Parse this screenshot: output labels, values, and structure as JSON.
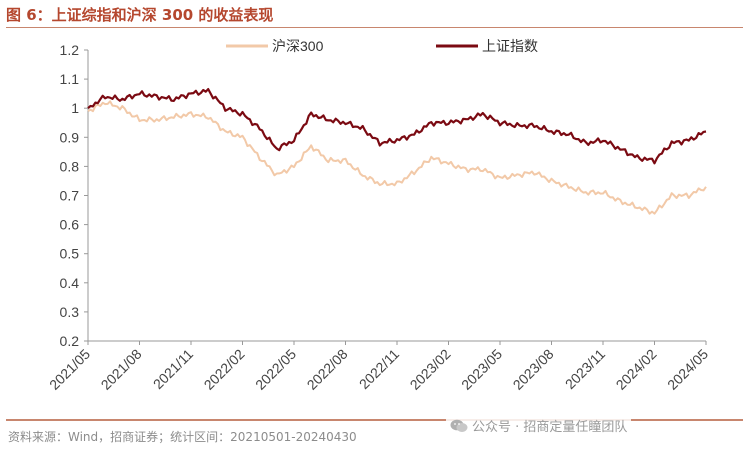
{
  "page": {
    "title": "图 6：上证综指和沪深 300 的收益表现",
    "source": "资料来源：Wind，招商证券；统计区间：20210501-20240430",
    "watermark": "公众号 · 招商定量任瞳团队",
    "accent_color": "#b5472e"
  },
  "chart_data": {
    "type": "line",
    "title": "",
    "xlabel": "",
    "ylabel": "",
    "ylim": [
      0.2,
      1.2
    ],
    "y_ticks": [
      "0.2",
      "0.3",
      "0.4",
      "0.5",
      "0.6",
      "0.7",
      "0.8",
      "0.9",
      "1",
      "1.1",
      "1.2"
    ],
    "x_tick_labels": [
      "2021/05",
      "2021/08",
      "2021/11",
      "2022/02",
      "2022/05",
      "2022/08",
      "2022/11",
      "2023/02",
      "2023/05",
      "2023/08",
      "2023/11",
      "2024/02",
      "2024/05"
    ],
    "x_range": [
      "2021/05",
      "2024/05"
    ],
    "grid": false,
    "legend_position": "top",
    "x": [
      "2021/05",
      "2021/06",
      "2021/07",
      "2021/08",
      "2021/09",
      "2021/10",
      "2021/11",
      "2021/12",
      "2022/01",
      "2022/02",
      "2022/03",
      "2022/04",
      "2022/05",
      "2022/06",
      "2022/07",
      "2022/08",
      "2022/09",
      "2022/10",
      "2022/11",
      "2022/12",
      "2023/01",
      "2023/02",
      "2023/03",
      "2023/04",
      "2023/05",
      "2023/06",
      "2023/07",
      "2023/08",
      "2023/09",
      "2023/10",
      "2023/11",
      "2023/12",
      "2024/01",
      "2024/02",
      "2024/03",
      "2024/04",
      "2024/05"
    ],
    "series": [
      {
        "name": "沪深300",
        "color": "#f2c9a8",
        "values": [
          0.99,
          1.02,
          1.0,
          0.96,
          0.96,
          0.97,
          0.98,
          0.97,
          0.92,
          0.9,
          0.83,
          0.77,
          0.8,
          0.87,
          0.82,
          0.82,
          0.77,
          0.74,
          0.74,
          0.78,
          0.83,
          0.81,
          0.79,
          0.79,
          0.76,
          0.77,
          0.78,
          0.75,
          0.73,
          0.71,
          0.71,
          0.68,
          0.66,
          0.64,
          0.7,
          0.7,
          0.73
        ]
      },
      {
        "name": "上证指数",
        "color": "#7b0a12",
        "values": [
          1.0,
          1.04,
          1.03,
          1.05,
          1.04,
          1.03,
          1.05,
          1.06,
          1.0,
          0.98,
          0.93,
          0.86,
          0.89,
          0.98,
          0.96,
          0.95,
          0.93,
          0.88,
          0.89,
          0.91,
          0.95,
          0.95,
          0.96,
          0.98,
          0.95,
          0.94,
          0.94,
          0.92,
          0.91,
          0.88,
          0.89,
          0.86,
          0.83,
          0.82,
          0.88,
          0.89,
          0.92
        ]
      }
    ]
  }
}
